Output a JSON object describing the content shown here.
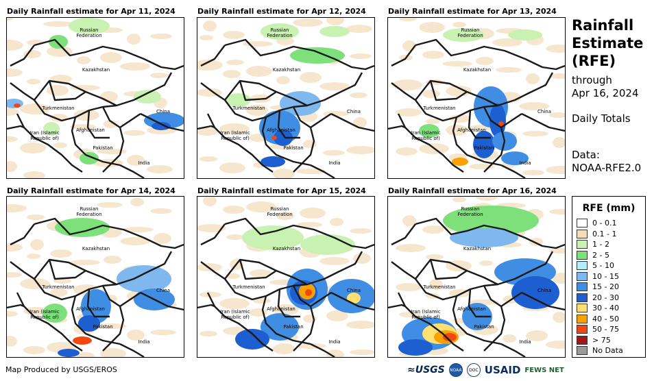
{
  "panels": [
    {
      "title": "Daily Rainfall estimate for Apr 11, 2024",
      "date": "Apr 11"
    },
    {
      "title": "Daily Rainfall estimate for Apr 12, 2024",
      "date": "Apr 12"
    },
    {
      "title": "Daily Rainfall estimate for Apr 13, 2024",
      "date": "Apr 13"
    },
    {
      "title": "Daily Rainfall estimate for Apr 14, 2024",
      "date": "Apr 14"
    },
    {
      "title": "Daily Rainfall estimate for Apr 15, 2024",
      "date": "Apr 15"
    },
    {
      "title": "Daily Rainfall estimate for Apr 16, 2024",
      "date": "Apr 16"
    }
  ],
  "map_labels": {
    "russia": "Russian\nFederation",
    "kazakhstan": "Kazakhstan",
    "turkmenistan": "Turkmenistan",
    "china": "China",
    "afghanistan": "Afghanistan",
    "iran": "Iran  (Islamic\nRepublic of)",
    "pakistan": "Pakistan",
    "india": "India"
  },
  "sidebar": {
    "title": "Rainfall\nEstimate\n(RFE)",
    "through": "through\nApr 16, 2024",
    "daily": "Daily Totals",
    "data": "Data:\nNOAA-RFE2.0"
  },
  "legend": {
    "title": "RFE (mm)",
    "items": [
      {
        "label": "0 - 0.1",
        "color": "#ffffff"
      },
      {
        "label": "0.1 - 1",
        "color": "#f3dcb9"
      },
      {
        "label": "1 - 2",
        "color": "#c9f2b2"
      },
      {
        "label": "2 - 5",
        "color": "#7ee07a"
      },
      {
        "label": "5 - 10",
        "color": "#b6ecfb"
      },
      {
        "label": "10 - 15",
        "color": "#7fb8ee"
      },
      {
        "label": "15 - 20",
        "color": "#3f8ee3"
      },
      {
        "label": "20 - 30",
        "color": "#1d5fd0"
      },
      {
        "label": "30 - 40",
        "color": "#ffe070"
      },
      {
        "label": "40 - 50",
        "color": "#f8a200"
      },
      {
        "label": "50 - 75",
        "color": "#f04810"
      },
      {
        "label": "> 75",
        "color": "#a01818"
      },
      {
        "label": "No Data",
        "color": "#9a9a9a"
      }
    ]
  },
  "footer": "Map Produced by USGS/EROS",
  "logos": {
    "usgs": "≈USGS",
    "noaa": "NOAA",
    "doc": "DOC",
    "usaid": "USAID",
    "fews": "FEWS NET"
  }
}
